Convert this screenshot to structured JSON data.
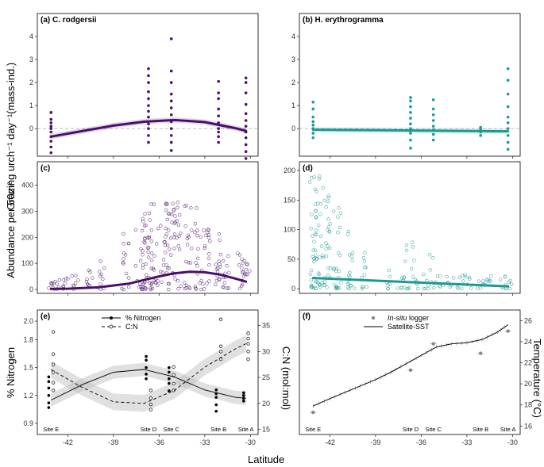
{
  "figure": {
    "x_label": "Latitude",
    "y_label_top": "Grazing urch⁻¹ day⁻¹(mass-ind.)",
    "y_label_mid": "Abundance per 50m²",
    "y_label_bl": "% Nitrogen",
    "y_label_bl_right": "C:N (mol:mol)",
    "y_label_br_right": "Temperature (°C)"
  },
  "colors": {
    "purple": "#4b0f6b",
    "teal": "#1a9994",
    "gray": "#888888"
  },
  "sites": [
    {
      "name": "Site E",
      "lat": -43.1
    },
    {
      "name": "Site D",
      "lat": -36.7
    },
    {
      "name": "Site C",
      "lat": -35.2
    },
    {
      "name": "Site B",
      "lat": -32.1
    },
    {
      "name": "Site A",
      "lat": -30.3
    }
  ],
  "chart_data": [
    {
      "id": "a",
      "type": "scatter",
      "title": "(a) C. rodgersii",
      "xlim": [
        -44,
        -29.5
      ],
      "ylim": [
        -1.2,
        5.0
      ],
      "yticks": [
        0,
        1,
        2,
        3,
        4
      ],
      "xticks": [
        -42,
        -39,
        -36,
        -33,
        -30
      ],
      "reference_line": 0,
      "points": [
        [
          -43.1,
          -1.05
        ],
        [
          -43.1,
          -0.8
        ],
        [
          -43.1,
          -0.55
        ],
        [
          -43.1,
          -0.35
        ],
        [
          -43.1,
          -0.15
        ],
        [
          -43.1,
          0.0
        ],
        [
          -43.1,
          0.1
        ],
        [
          -43.1,
          0.25
        ],
        [
          -43.1,
          0.4
        ],
        [
          -43.1,
          0.7
        ],
        [
          -36.7,
          -0.6
        ],
        [
          -36.7,
          -0.3
        ],
        [
          -36.7,
          0.0
        ],
        [
          -36.7,
          0.2
        ],
        [
          -36.7,
          0.5
        ],
        [
          -36.7,
          0.75
        ],
        [
          -36.7,
          1.0
        ],
        [
          -36.7,
          1.3
        ],
        [
          -36.7,
          1.6
        ],
        [
          -36.7,
          2.0
        ],
        [
          -36.7,
          2.3
        ],
        [
          -36.7,
          2.6
        ],
        [
          -35.2,
          -0.95
        ],
        [
          -35.2,
          -0.6
        ],
        [
          -35.2,
          -0.3
        ],
        [
          -35.2,
          0.0
        ],
        [
          -35.2,
          0.3
        ],
        [
          -35.2,
          0.6
        ],
        [
          -35.2,
          0.9
        ],
        [
          -35.2,
          1.2
        ],
        [
          -35.2,
          1.5
        ],
        [
          -35.2,
          2.0
        ],
        [
          -35.2,
          2.5
        ],
        [
          -35.2,
          3.9
        ],
        [
          -32.1,
          -0.6
        ],
        [
          -32.1,
          -0.35
        ],
        [
          -32.1,
          -0.15
        ],
        [
          -32.1,
          0.0
        ],
        [
          -32.1,
          0.25
        ],
        [
          -32.1,
          0.55
        ],
        [
          -32.1,
          0.85
        ],
        [
          -32.1,
          1.3
        ],
        [
          -32.1,
          1.55
        ],
        [
          -32.1,
          2.05
        ],
        [
          -30.3,
          -1.3
        ],
        [
          -30.3,
          -1.0
        ],
        [
          -30.3,
          -0.7
        ],
        [
          -30.3,
          -0.4
        ],
        [
          -30.3,
          -0.15
        ],
        [
          -30.3,
          0.1
        ],
        [
          -30.3,
          0.35
        ],
        [
          -30.3,
          0.65
        ],
        [
          -30.3,
          1.05
        ],
        [
          -30.3,
          1.55
        ],
        [
          -30.3,
          2.0
        ],
        [
          -30.3,
          2.2
        ]
      ],
      "fit": {
        "x": [
          -43.1,
          -41,
          -39,
          -37,
          -35,
          -33,
          -31,
          -30.3
        ],
        "y": [
          -0.35,
          -0.1,
          0.13,
          0.3,
          0.37,
          0.28,
          0.02,
          -0.1
        ]
      }
    },
    {
      "id": "b",
      "type": "scatter",
      "title": "(b) H. erythrogramma",
      "xlim": [
        -44,
        -29.5
      ],
      "ylim": [
        -1.2,
        5.0
      ],
      "yticks": [
        0,
        1,
        2,
        3,
        4
      ],
      "xticks": [
        -42,
        -39,
        -36,
        -33,
        -30
      ],
      "reference_line": 0,
      "points": [
        [
          -43.1,
          -0.4
        ],
        [
          -43.1,
          -0.2
        ],
        [
          -43.1,
          0.0
        ],
        [
          -43.1,
          0.15
        ],
        [
          -43.1,
          0.3
        ],
        [
          -43.1,
          0.5
        ],
        [
          -43.1,
          0.85
        ],
        [
          -43.1,
          1.15
        ],
        [
          -36.7,
          -0.85
        ],
        [
          -36.7,
          -0.5
        ],
        [
          -36.7,
          -0.2
        ],
        [
          -36.7,
          0.0
        ],
        [
          -36.7,
          0.2
        ],
        [
          -36.7,
          0.45
        ],
        [
          -36.7,
          0.7
        ],
        [
          -36.7,
          0.95
        ],
        [
          -36.7,
          1.2
        ],
        [
          -36.7,
          1.35
        ],
        [
          -35.2,
          -0.5
        ],
        [
          -35.2,
          -0.25
        ],
        [
          -35.2,
          -0.05
        ],
        [
          -35.2,
          0.1
        ],
        [
          -35.2,
          0.35
        ],
        [
          -35.2,
          0.6
        ],
        [
          -35.2,
          0.85
        ],
        [
          -35.2,
          1.25
        ],
        [
          -32.1,
          -0.3
        ],
        [
          -32.1,
          -0.15
        ],
        [
          -32.1,
          -0.05
        ],
        [
          -32.1,
          0.05
        ],
        [
          -30.3,
          -0.9
        ],
        [
          -30.3,
          -0.6
        ],
        [
          -30.3,
          -0.3
        ],
        [
          -30.3,
          0.0
        ],
        [
          -30.3,
          0.25
        ],
        [
          -30.3,
          0.5
        ],
        [
          -30.3,
          0.95
        ],
        [
          -30.3,
          1.5
        ],
        [
          -30.3,
          2.1
        ],
        [
          -30.3,
          2.6
        ]
      ],
      "fit": {
        "x": [
          -43.1,
          -30.3
        ],
        "y": [
          -0.05,
          -0.12
        ]
      }
    },
    {
      "id": "c",
      "type": "scatter",
      "title": "(c)",
      "xlim": [
        -44,
        -29.5
      ],
      "ylim": [
        -15,
        490
      ],
      "yticks": [
        0,
        100,
        200,
        300,
        400
      ],
      "xticks": [
        -42,
        -39,
        -36,
        -33,
        -30
      ],
      "fit": {
        "x": [
          -43.1,
          -42,
          -40,
          -38,
          -36,
          -35,
          -34,
          -33,
          -32,
          -31,
          -30.3
        ],
        "y": [
          2,
          3,
          8,
          22,
          50,
          62,
          68,
          66,
          57,
          42,
          30
        ]
      }
    },
    {
      "id": "d",
      "type": "scatter",
      "title": "(d)",
      "xlim": [
        -44,
        -29.5
      ],
      "ylim": [
        -8,
        215
      ],
      "yticks": [
        0,
        50,
        100,
        150,
        200
      ],
      "xticks": [
        -42,
        -39,
        -36,
        -33,
        -30
      ],
      "fit": {
        "x": [
          -43.1,
          -30.3
        ],
        "y": [
          18,
          4
        ]
      }
    },
    {
      "id": "e",
      "type": "line",
      "title": "(e)",
      "xlim": [
        -44,
        -29.5
      ],
      "ylim": [
        0.78,
        2.12
      ],
      "yticks": [
        0.9,
        1.2,
        1.5,
        1.8,
        2.0
      ],
      "y2lim": [
        14,
        38
      ],
      "y2ticks": [
        15,
        20,
        25,
        30,
        35
      ],
      "xticks": [
        -42,
        -39,
        -36,
        -33,
        -30
      ],
      "legend": {
        "items": [
          "% Nitrogen",
          "C:N"
        ],
        "placement": "top-center"
      },
      "series": [
        {
          "name": "% Nitrogen",
          "axis": "left",
          "points": [
            [
              -43.1,
              1.07
            ],
            [
              -43.1,
              1.12
            ],
            [
              -43.1,
              1.2
            ],
            [
              -43.1,
              1.28
            ],
            [
              -43.1,
              1.35
            ],
            [
              -43.1,
              1.4
            ],
            [
              -36.7,
              1.38
            ],
            [
              -36.7,
              1.43
            ],
            [
              -36.7,
              1.5
            ],
            [
              -36.7,
              1.58
            ],
            [
              -36.7,
              1.62
            ],
            [
              -35.2,
              1.25
            ],
            [
              -35.2,
              1.33
            ],
            [
              -35.2,
              1.38
            ],
            [
              -35.2,
              1.45
            ],
            [
              -35.2,
              1.5
            ],
            [
              -32.1,
              1.03
            ],
            [
              -32.1,
              1.1
            ],
            [
              -32.1,
              1.18
            ],
            [
              -32.1,
              1.22
            ],
            [
              -32.1,
              1.26
            ],
            [
              -30.3,
              1.14
            ],
            [
              -30.3,
              1.17
            ],
            [
              -30.3,
              1.2
            ],
            [
              -30.3,
              1.23
            ]
          ],
          "fit": {
            "x": [
              -43.1,
              -41,
              -39,
              -37,
              -35,
              -33,
              -31,
              -30.3
            ],
            "y": [
              1.15,
              1.32,
              1.45,
              1.48,
              1.4,
              1.26,
              1.18,
              1.17
            ]
          }
        },
        {
          "name": "C:N",
          "axis": "right",
          "points": [
            [
              -43.1,
              22.5
            ],
            [
              -43.1,
              24
            ],
            [
              -43.1,
              26
            ],
            [
              -43.1,
              27.5
            ],
            [
              -43.1,
              29.5
            ],
            [
              -43.1,
              33.8
            ],
            [
              -36.7,
              18.8
            ],
            [
              -36.7,
              19.8
            ],
            [
              -36.7,
              21
            ],
            [
              -36.7,
              22.5
            ],
            [
              -35.2,
              22.5
            ],
            [
              -35.2,
              23.8
            ],
            [
              -35.2,
              25.5
            ],
            [
              -35.2,
              27
            ],
            [
              -32.1,
              28.5
            ],
            [
              -32.1,
              30
            ],
            [
              -32.1,
              31
            ],
            [
              -32.1,
              36.2
            ],
            [
              -30.3,
              28.5
            ],
            [
              -30.3,
              30
            ],
            [
              -30.3,
              31.5
            ],
            [
              -30.3,
              32.5
            ],
            [
              -30.3,
              33.5
            ]
          ],
          "fit": {
            "x": [
              -43.1,
              -41,
              -39,
              -37,
              -35,
              -33,
              -31,
              -30.3
            ],
            "y": [
              26.5,
              23.0,
              20.3,
              20.0,
              22.5,
              27,
              30.5,
              31.5
            ]
          }
        }
      ]
    },
    {
      "id": "f",
      "type": "line",
      "title": "(f)",
      "xlim": [
        -44,
        -29.5
      ],
      "y2lim": [
        15.2,
        27
      ],
      "y2ticks": [
        16,
        18,
        20,
        22,
        24,
        26
      ],
      "xticks": [
        -42,
        -39,
        -36,
        -33,
        -30
      ],
      "legend": {
        "items": [
          "In-situ logger",
          "Satellite-SST"
        ],
        "placement": "top-center"
      },
      "series": [
        {
          "name": "In-situ logger",
          "points": [
            [
              -43.1,
              17.3
            ],
            [
              -36.7,
              21.3
            ],
            [
              -35.2,
              23.8
            ],
            [
              -32.1,
              22.9
            ],
            [
              -30.3,
              25.0
            ]
          ]
        },
        {
          "name": "Satellite-SST",
          "x": [
            -43.1,
            -42,
            -41,
            -40,
            -39,
            -38,
            -37,
            -36,
            -35,
            -34,
            -33,
            -32,
            -31,
            -30.3
          ],
          "y": [
            17.9,
            18.6,
            19.2,
            19.8,
            20.4,
            21.1,
            21.9,
            22.7,
            23.5,
            23.8,
            23.9,
            24.2,
            24.9,
            25.6
          ]
        }
      ]
    }
  ]
}
